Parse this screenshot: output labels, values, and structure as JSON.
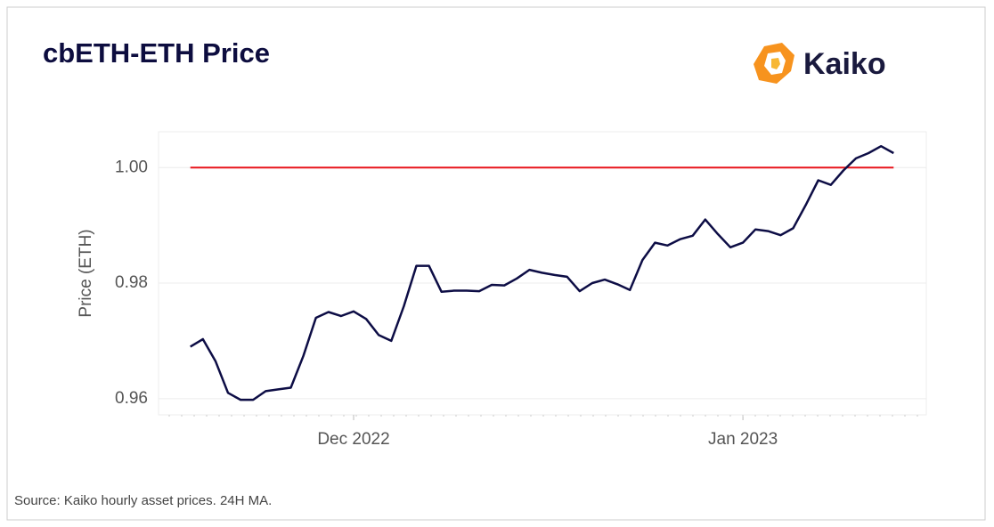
{
  "chart_data": {
    "type": "line",
    "title": "cbETH-ETH Price",
    "brand": "Kaiko",
    "source": "Source: Kaiko hourly asset prices. 24H MA.",
    "ylabel": "Price (ETH)",
    "categories": [
      null,
      null,
      null,
      null,
      null,
      null,
      null,
      null,
      null,
      null,
      null,
      null,
      null,
      "Dec 2022",
      null,
      null,
      null,
      null,
      null,
      null,
      null,
      null,
      null,
      null,
      null,
      null,
      null,
      null,
      null,
      null,
      null,
      null,
      null,
      null,
      null,
      null,
      null,
      null,
      null,
      null,
      null,
      null,
      null,
      null,
      "Jan 2023",
      null,
      null,
      null,
      null,
      null,
      null,
      null,
      null,
      null,
      null,
      null,
      null
    ],
    "values": [
      0.969,
      0.9703,
      0.9665,
      0.961,
      0.9598,
      0.9598,
      0.9613,
      0.9616,
      0.9619,
      0.9674,
      0.974,
      0.975,
      0.9743,
      0.9751,
      0.9738,
      0.971,
      0.97,
      0.976,
      0.983,
      0.983,
      0.9785,
      0.9787,
      0.9787,
      0.9786,
      0.9797,
      0.9796,
      0.9808,
      0.9823,
      0.9818,
      0.9814,
      0.9811,
      0.9786,
      0.98,
      0.9806,
      0.9798,
      0.9788,
      0.984,
      0.987,
      0.9865,
      0.9876,
      0.9882,
      0.991,
      0.9885,
      0.9862,
      0.987,
      0.9893,
      0.989,
      0.9883,
      0.9895,
      0.9935,
      0.9978,
      0.997,
      0.9995,
      1.0016,
      1.0025,
      1.0037,
      1.0025
    ],
    "color": "#0d0d45",
    "reference_line": 1.0,
    "reference_color": "#e8141b",
    "ylim": [
      0.9572,
      1.0062
    ],
    "yticks": [
      {
        "value": 0.96,
        "label": "0.96"
      },
      {
        "value": 0.98,
        "label": "0.98"
      },
      {
        "value": 1.0,
        "label": "1.00"
      }
    ],
    "grid": true
  }
}
